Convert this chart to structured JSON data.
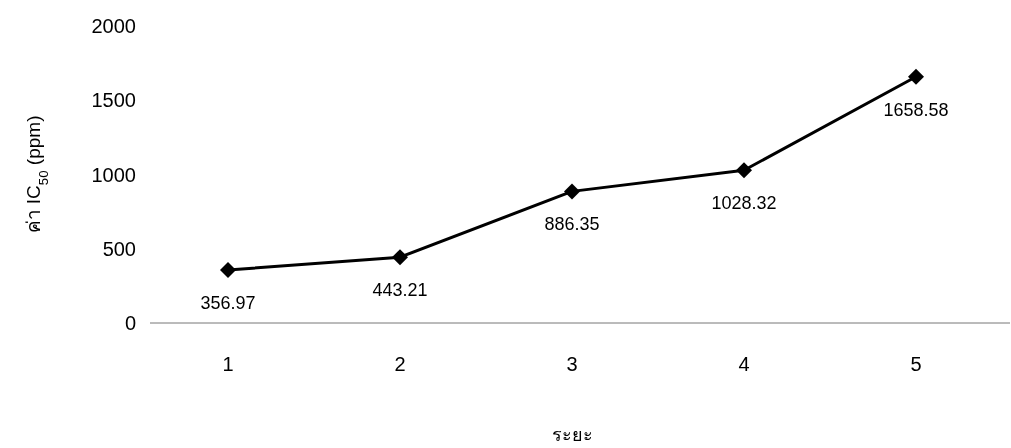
{
  "chart_data": {
    "type": "line",
    "xlabel": "ระยะ",
    "ylabel": "ค่า IC$_{50}$ (ppm)",
    "categories": [
      "1",
      "2",
      "3",
      "4",
      "5"
    ],
    "series": [
      {
        "color": "#000000",
        "values": [
          356.97,
          443.21,
          886.35,
          1028.32,
          1658.58
        ]
      }
    ],
    "ylim": [
      0,
      2000
    ],
    "yticks": [
      0,
      500,
      1000,
      1500,
      2000
    ],
    "data_labels": true,
    "marker": "diamond",
    "line_style": "solid",
    "grid": false
  }
}
